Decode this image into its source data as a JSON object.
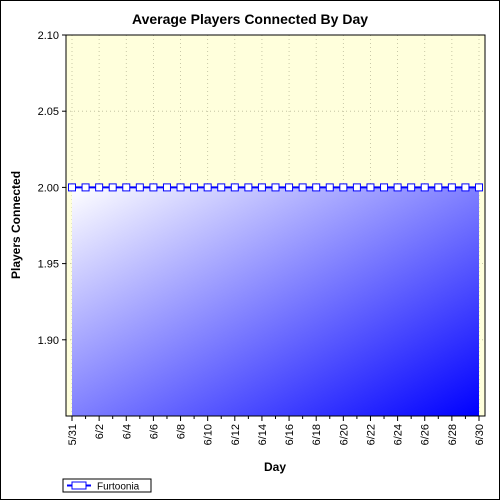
{
  "chart_data": {
    "type": "area",
    "title": "Average Players Connected By Day",
    "xlabel": "Day",
    "ylabel": "Players Connected",
    "ylim": [
      1.85,
      2.1
    ],
    "yticks": [
      "1.90",
      "1.95",
      "2.00",
      "2.05",
      "2.10"
    ],
    "grid": true,
    "legend_position": "bottom-left",
    "colors": {
      "upper_background": "#ffffdc",
      "area_light": "#ffffff",
      "area_dark": "#0000ff",
      "line": "#0000ff",
      "marker_fill": "#ffffff"
    },
    "x": [
      "5/31",
      "6/1",
      "6/2",
      "6/3",
      "6/4",
      "6/5",
      "6/6",
      "6/7",
      "6/8",
      "6/9",
      "6/10",
      "6/11",
      "6/12",
      "6/13",
      "6/14",
      "6/15",
      "6/16",
      "6/17",
      "6/18",
      "6/19",
      "6/20",
      "6/21",
      "6/22",
      "6/23",
      "6/24",
      "6/25",
      "6/26",
      "6/27",
      "6/28",
      "6/29",
      "6/30"
    ],
    "xtick_labels": [
      "5/31",
      "6/2",
      "6/4",
      "6/6",
      "6/8",
      "6/10",
      "6/12",
      "6/14",
      "6/16",
      "6/18",
      "6/20",
      "6/22",
      "6/24",
      "6/26",
      "6/28",
      "6/30"
    ],
    "series": [
      {
        "name": "Furtoonia",
        "values": [
          2,
          2,
          2,
          2,
          2,
          2,
          2,
          2,
          2,
          2,
          2,
          2,
          2,
          2,
          2,
          2,
          2,
          2,
          2,
          2,
          2,
          2,
          2,
          2,
          2,
          2,
          2,
          2,
          2,
          2,
          2
        ]
      }
    ]
  }
}
